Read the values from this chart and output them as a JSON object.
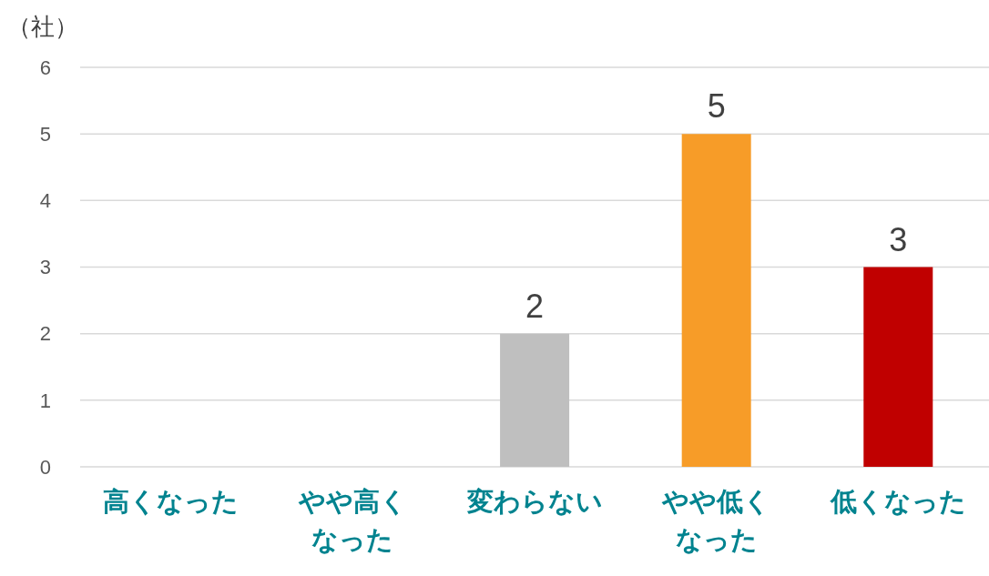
{
  "chart_data": {
    "type": "bar",
    "ylabel": "（社）",
    "categories": [
      "高くなった",
      "やや高くなった",
      "変わらない",
      "やや低くなった",
      "低くなった"
    ],
    "values": [
      0,
      0,
      2,
      5,
      3
    ],
    "colors": [
      null,
      null,
      "#bfbfbf",
      "#f79c28",
      "#c00000"
    ],
    "value_labels": [
      null,
      null,
      "2",
      "5",
      "3"
    ],
    "ylim": [
      0,
      6
    ],
    "yticks": [
      0,
      1,
      2,
      3,
      4,
      5,
      6
    ],
    "grid": "y",
    "legend": false
  }
}
